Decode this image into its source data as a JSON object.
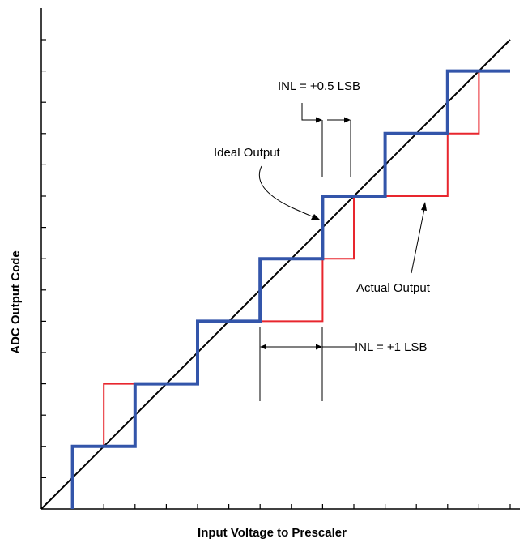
{
  "chart_data": {
    "type": "line",
    "xlabel": "Input Voltage to Prescaler",
    "ylabel": "ADC Output Code",
    "x_ticks": 15,
    "y_ticks": 15,
    "xlim": [
      0,
      15
    ],
    "ylim": [
      0,
      15
    ],
    "colors": {
      "ideal": "#3355aa",
      "actual": "#e8262e",
      "axis": "#000000"
    },
    "series": [
      {
        "name": "Ideal Output",
        "points": [
          [
            1,
            0
          ],
          [
            1,
            2
          ],
          [
            3,
            2
          ],
          [
            3,
            4
          ],
          [
            5,
            4
          ],
          [
            5,
            6
          ],
          [
            7,
            6
          ],
          [
            7,
            8
          ],
          [
            9,
            8
          ],
          [
            9,
            10
          ],
          [
            11,
            10
          ],
          [
            11,
            12
          ],
          [
            13,
            12
          ],
          [
            13,
            14
          ],
          [
            15,
            14
          ]
        ]
      },
      {
        "name": "Actual Output",
        "points": [
          [
            1,
            0
          ],
          [
            1,
            2
          ],
          [
            2,
            2
          ],
          [
            2,
            4
          ],
          [
            5,
            4
          ],
          [
            5,
            6
          ],
          [
            9,
            6
          ],
          [
            9,
            8
          ],
          [
            10,
            8
          ],
          [
            10,
            10
          ],
          [
            13,
            10
          ],
          [
            13,
            12
          ],
          [
            14,
            12
          ],
          [
            14,
            14
          ],
          [
            15,
            14
          ]
        ]
      }
    ],
    "ideal_diagonal": [
      [
        0,
        0
      ],
      [
        15,
        15
      ]
    ],
    "annotations": [
      {
        "text": "INL = +0.5 LSB"
      },
      {
        "text": "Ideal Output"
      },
      {
        "text": "Actual Output"
      },
      {
        "text": "INL = +1 LSB"
      }
    ]
  }
}
